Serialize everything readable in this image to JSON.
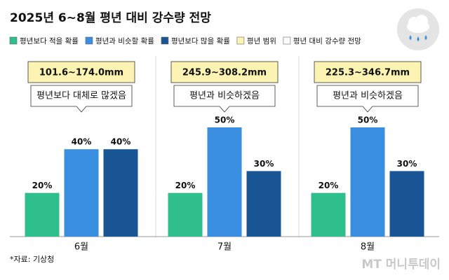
{
  "chart_data": {
    "type": "bar",
    "title": "2025년 6~8월 평년 대비 강수량 전망",
    "categories": [
      "6월",
      "7월",
      "8월"
    ],
    "series": [
      {
        "name": "평년보다 적을 확률",
        "color": "#2ebf8c",
        "values": [
          20,
          20,
          20
        ],
        "value_labels": [
          "20%",
          "20%",
          "20%"
        ]
      },
      {
        "name": "평년과 비슷할 확률",
        "color": "#3a8ee0",
        "values": [
          40,
          50,
          50
        ],
        "value_labels": [
          "40%",
          "50%",
          "50%"
        ]
      },
      {
        "name": "평년보다 많을 확률",
        "color": "#1a5595",
        "values": [
          40,
          30,
          30
        ],
        "value_labels": [
          "40%",
          "30%",
          "30%"
        ]
      }
    ],
    "range_legend": {
      "label": "평년 범위",
      "color": "#fdf3b3"
    },
    "outlook_legend": {
      "label": "평년 대비 강수량 전망",
      "color": "#ffffff"
    },
    "ranges": [
      "101.6~174.0mm",
      "245.9~308.2mm",
      "225.3~346.7mm"
    ],
    "outlooks": [
      "평년보다 대체로 많겠음",
      "평년과 비슷하겠음",
      "평년과 비슷하겠음"
    ],
    "source": "*자료: 기상청",
    "watermark": "MT 머니투데이"
  }
}
